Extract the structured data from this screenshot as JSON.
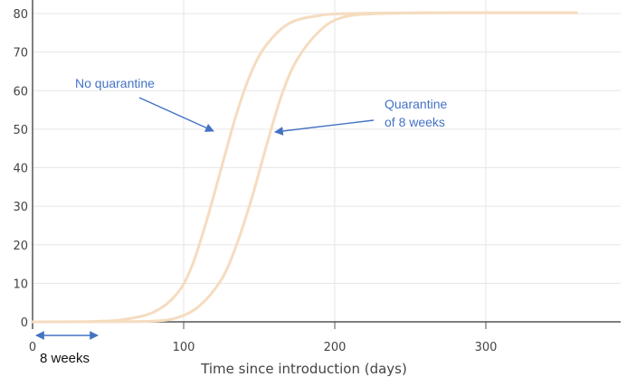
{
  "chart_data": {
    "type": "line",
    "title": "",
    "xlabel": "Time since introduction (days)",
    "ylabel": "",
    "xlim": [
      0,
      390
    ],
    "ylim": [
      0,
      82
    ],
    "x_ticks": [
      0,
      100,
      200,
      300
    ],
    "y_ticks": [
      0,
      10,
      20,
      30,
      40,
      50,
      60,
      70,
      80
    ],
    "grid": "vertical and horizontal, light gray",
    "series": [
      {
        "color": "#f5dcc0",
        "points": [
          [
            0,
            0
          ],
          [
            40,
            0.1
          ],
          [
            60,
            0.6
          ],
          [
            80,
            2.5
          ],
          [
            95,
            7
          ],
          [
            105,
            14
          ],
          [
            115,
            26
          ],
          [
            125,
            40
          ],
          [
            135,
            54
          ],
          [
            145,
            65
          ],
          [
            155,
            72
          ],
          [
            170,
            77.5
          ],
          [
            190,
            79.5
          ],
          [
            210,
            80
          ],
          [
            260,
            80.2
          ],
          [
            360,
            80.2
          ]
        ]
      },
      {
        "color": "#f5dcc0",
        "points": [
          [
            0,
            0
          ],
          [
            60,
            0.05
          ],
          [
            80,
            0.2
          ],
          [
            95,
            1
          ],
          [
            110,
            4
          ],
          [
            125,
            11
          ],
          [
            135,
            20
          ],
          [
            145,
            32
          ],
          [
            155,
            46
          ],
          [
            165,
            59
          ],
          [
            175,
            68
          ],
          [
            190,
            75.5
          ],
          [
            205,
            79
          ],
          [
            230,
            80
          ],
          [
            280,
            80.2
          ],
          [
            360,
            80.2
          ]
        ]
      }
    ],
    "annotations": [
      {
        "text": "No quarantine"
      },
      {
        "text": "Quarantine"
      },
      {
        "text": "of 8 weeks"
      },
      {
        "text": "8 weeks"
      }
    ],
    "colors": {
      "annotation": "#4472c4",
      "curve": "#f5dcc0",
      "grid": "#e6e6e6",
      "axis": "#555555"
    }
  }
}
